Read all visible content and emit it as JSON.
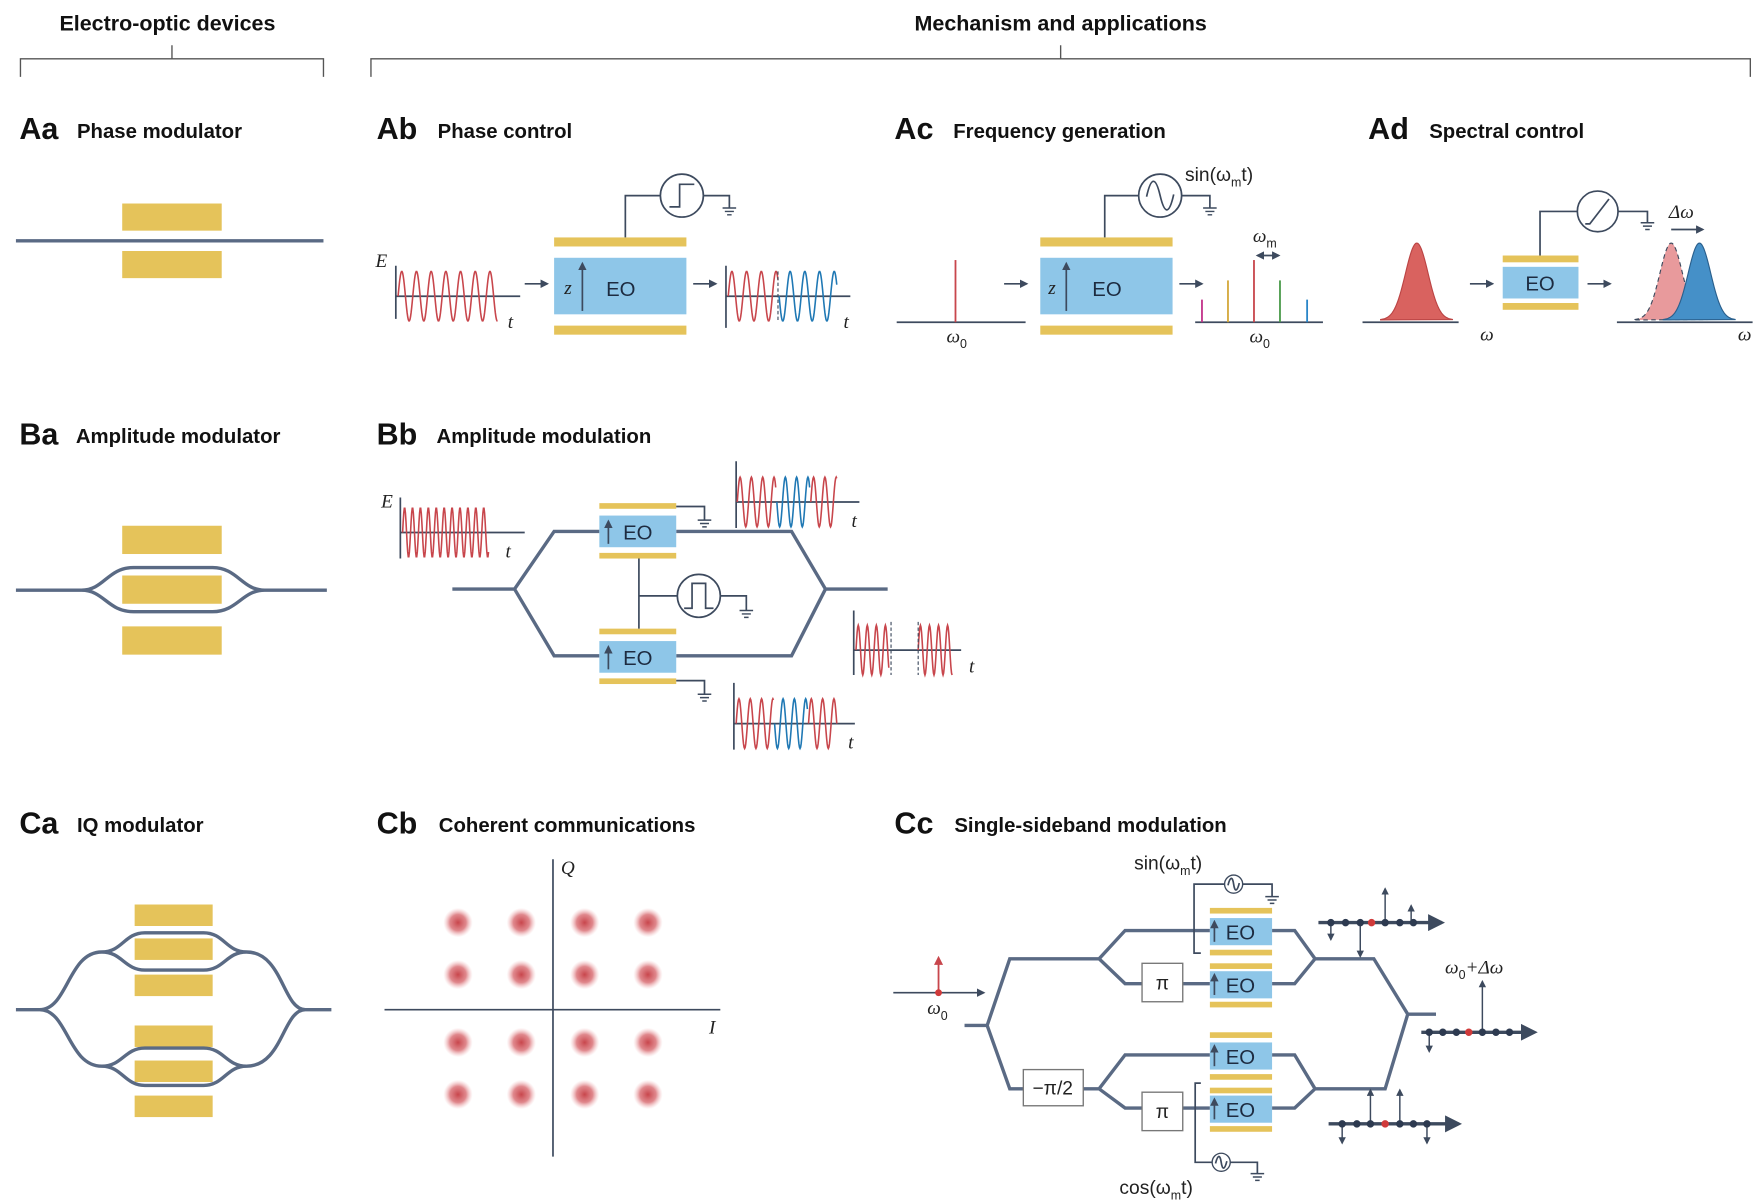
{
  "colors": {
    "electrode": "#E5C35A",
    "eo_crystal": "#8EC6E8",
    "waveguide": "#5A6A84",
    "red_wave": "#C8464C",
    "blue_wave": "#1F78B4",
    "carrier_dot": "#D03A3A"
  },
  "headers": {
    "devices": "Electro-optic devices",
    "mechanism": "Mechanism and applications"
  },
  "panels": {
    "Aa": {
      "letter": "Aa",
      "title": "Phase modulator"
    },
    "Ab": {
      "letter": "Ab",
      "title": "Phase control"
    },
    "Ac": {
      "letter": "Ac",
      "title": "Frequency generation"
    },
    "Ad": {
      "letter": "Ad",
      "title": "Spectral control"
    },
    "Ba": {
      "letter": "Ba",
      "title": "Amplitude modulator"
    },
    "Bb": {
      "letter": "Bb",
      "title": "Amplitude modulation"
    },
    "Ca": {
      "letter": "Ca",
      "title": "IQ modulator"
    },
    "Cb": {
      "letter": "Cb",
      "title": "Coherent communications"
    },
    "Cc": {
      "letter": "Cc",
      "title": "Single-sideband modulation"
    }
  },
  "labels": {
    "E": "E",
    "t": "t",
    "z": "z",
    "eo": "EO",
    "omega": "ω",
    "delta_omega": "Δω",
    "omega0": {
      "main": "ω",
      "sub": "0"
    },
    "omegam": {
      "main": "ω",
      "sub": "m"
    },
    "sin": {
      "prefix": "sin(ω",
      "sub": "m",
      "suffix": "t)"
    },
    "cos": {
      "prefix": "cos(ω",
      "sub": "m",
      "suffix": "t)"
    },
    "shifted": {
      "main": "ω",
      "sub": "0",
      "suffix": "+Δω"
    },
    "Q": "Q",
    "I": "I",
    "pi": "π",
    "minus_pi_half": "−π/2"
  },
  "icons": {
    "step_source": "step-voltage-source-icon",
    "sine_source": "sine-voltage-source-icon",
    "ramp_source": "ramp-voltage-source-icon",
    "pulse_source": "pulse-voltage-source-icon",
    "ground": "ground-icon"
  }
}
